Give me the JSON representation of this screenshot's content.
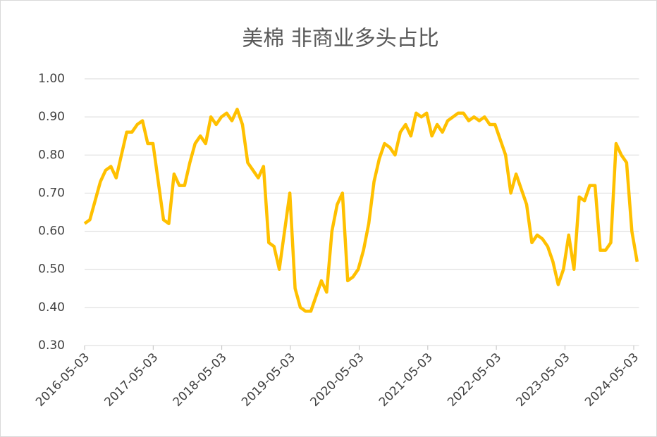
{
  "chart_data": {
    "type": "line",
    "title": "美棉 非商业多头占比",
    "x": [
      "2016-05-03",
      "2016-05-31",
      "2016-06-28",
      "2016-07-26",
      "2016-08-23",
      "2016-09-20",
      "2016-10-18",
      "2016-11-15",
      "2016-12-13",
      "2017-01-10",
      "2017-02-07",
      "2017-03-07",
      "2017-04-04",
      "2017-05-02",
      "2017-05-30",
      "2017-06-27",
      "2017-07-25",
      "2017-08-22",
      "2017-09-19",
      "2017-10-17",
      "2017-11-14",
      "2017-12-12",
      "2018-01-09",
      "2018-02-06",
      "2018-03-06",
      "2018-04-03",
      "2018-05-01",
      "2018-05-29",
      "2018-06-26",
      "2018-07-24",
      "2018-08-21",
      "2018-09-18",
      "2018-10-16",
      "2018-11-13",
      "2018-12-11",
      "2019-01-08",
      "2019-02-05",
      "2019-03-05",
      "2019-04-02",
      "2019-04-30",
      "2019-05-28",
      "2019-06-25",
      "2019-07-23",
      "2019-08-20",
      "2019-09-17",
      "2019-10-15",
      "2019-11-12",
      "2019-12-10",
      "2020-01-07",
      "2020-02-04",
      "2020-03-03",
      "2020-03-31",
      "2020-04-28",
      "2020-05-26",
      "2020-06-23",
      "2020-07-21",
      "2020-08-18",
      "2020-09-15",
      "2020-10-13",
      "2020-11-10",
      "2020-12-08",
      "2021-01-05",
      "2021-02-02",
      "2021-03-02",
      "2021-03-30",
      "2021-04-27",
      "2021-05-25",
      "2021-06-22",
      "2021-07-20",
      "2021-08-17",
      "2021-09-14",
      "2021-10-12",
      "2021-11-09",
      "2021-12-07",
      "2022-01-04",
      "2022-02-01",
      "2022-03-01",
      "2022-03-29",
      "2022-04-26",
      "2022-05-24",
      "2022-06-21",
      "2022-07-19",
      "2022-08-16",
      "2022-09-13",
      "2022-10-11",
      "2022-11-08",
      "2022-12-06",
      "2023-01-03",
      "2023-01-31",
      "2023-02-28",
      "2023-03-28",
      "2023-04-25",
      "2023-05-23",
      "2023-06-20",
      "2023-07-18",
      "2023-08-15",
      "2023-09-12",
      "2023-10-10",
      "2023-11-07",
      "2023-12-05",
      "2024-01-02",
      "2024-01-30",
      "2024-02-27",
      "2024-03-26",
      "2024-04-23",
      "2024-05-21"
    ],
    "series": [
      {
        "color": "#FFC000",
        "values": [
          0.62,
          0.63,
          0.68,
          0.73,
          0.76,
          0.77,
          0.74,
          0.8,
          0.86,
          0.86,
          0.88,
          0.89,
          0.83,
          0.83,
          0.73,
          0.63,
          0.62,
          0.75,
          0.72,
          0.72,
          0.78,
          0.83,
          0.85,
          0.83,
          0.9,
          0.88,
          0.9,
          0.91,
          0.89,
          0.92,
          0.88,
          0.78,
          0.76,
          0.74,
          0.77,
          0.57,
          0.56,
          0.5,
          0.6,
          0.7,
          0.45,
          0.4,
          0.39,
          0.39,
          0.43,
          0.47,
          0.44,
          0.6,
          0.67,
          0.7,
          0.47,
          0.48,
          0.5,
          0.55,
          0.62,
          0.73,
          0.79,
          0.83,
          0.82,
          0.8,
          0.86,
          0.88,
          0.85,
          0.91,
          0.9,
          0.91,
          0.85,
          0.88,
          0.86,
          0.89,
          0.9,
          0.91,
          0.91,
          0.89,
          0.9,
          0.89,
          0.9,
          0.88,
          0.88,
          0.84,
          0.8,
          0.7,
          0.75,
          0.71,
          0.67,
          0.57,
          0.59,
          0.58,
          0.56,
          0.52,
          0.46,
          0.5,
          0.59,
          0.5,
          0.69,
          0.68,
          0.72,
          0.72,
          0.55,
          0.55,
          0.57,
          0.83,
          0.8,
          0.78,
          0.6,
          0.52
        ]
      }
    ],
    "xlim": [
      "2016-05-03",
      "2024-05-31"
    ],
    "xticks": [
      "2016-05-03",
      "2017-05-03",
      "2018-05-03",
      "2019-05-03",
      "2020-05-03",
      "2021-05-03",
      "2022-05-03",
      "2023-05-03",
      "2024-05-03"
    ],
    "ylim": [
      0.3,
      1.0
    ],
    "yticks": [
      {
        "value": 0.3,
        "label": "0.30"
      },
      {
        "value": 0.4,
        "label": "0.40"
      },
      {
        "value": 0.5,
        "label": "0.50"
      },
      {
        "value": 0.6,
        "label": "0.60"
      },
      {
        "value": 0.7,
        "label": "0.70"
      },
      {
        "value": 0.8,
        "label": "0.80"
      },
      {
        "value": 0.9,
        "label": "0.90"
      },
      {
        "value": 1.0,
        "label": "1.00"
      }
    ],
    "grid": true
  }
}
